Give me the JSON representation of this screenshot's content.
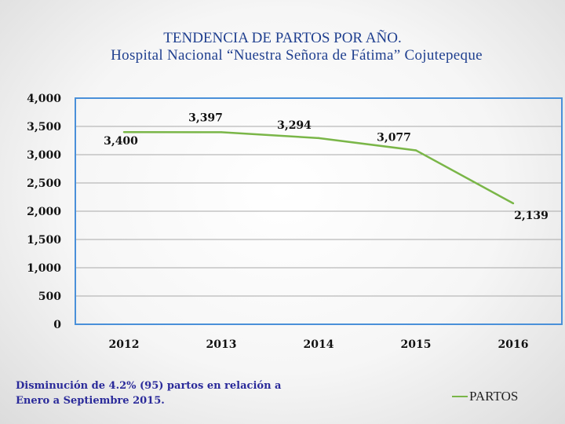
{
  "title": {
    "line1": "TENDENCIA DE PARTOS POR AÑO.",
    "line2": "Hospital Nacional “Nuestra Señora de Fátima” Cojutepeque"
  },
  "note": {
    "line1": "Disminución de 4.2% (95) partos en relación a",
    "line2": "Enero a Septiembre 2015."
  },
  "chart_data": {
    "type": "line",
    "title": "TENDENCIA DE PARTOS POR AÑO. Hospital Nacional “Nuestra Señora de Fátima” Cojutepeque",
    "categories": [
      "2012",
      "2013",
      "2014",
      "2015",
      "2016"
    ],
    "series": [
      {
        "name": "PARTOS",
        "values": [
          3400,
          3397,
          3294,
          3077,
          2139
        ],
        "color": "#7ab648"
      }
    ],
    "data_labels": [
      "3,400",
      "3,397",
      "3,294",
      "3,077",
      "2,139"
    ],
    "y_ticks": [
      0,
      500,
      1000,
      1500,
      2000,
      2500,
      3000,
      3500,
      4000
    ],
    "y_tick_labels": [
      "0",
      "500",
      "1,000",
      "1,500",
      "2,000",
      "2,500",
      "3,000",
      "3,500",
      "4,000"
    ],
    "ylim": [
      0,
      4000
    ],
    "grid": true,
    "legend": "bottom-right",
    "colors": {
      "plot_border": "#4a90d9",
      "grid": "#a9a9a9",
      "line": "#7ab648"
    }
  }
}
